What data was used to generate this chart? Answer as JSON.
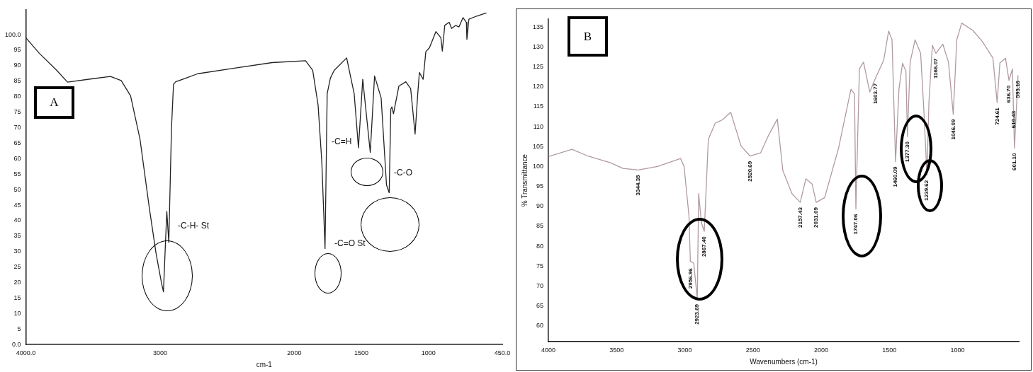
{
  "chart_data": [
    {
      "type": "line",
      "xlabel": "cm-1",
      "xlim": [
        4000,
        450
      ],
      "ylim": [
        0,
        108
      ],
      "color": "#222222",
      "xticks": [
        {
          "value": 4000,
          "label": "4000.0"
        },
        3000,
        2000,
        1500,
        1000,
        {
          "value": 450,
          "label": "450.0"
        }
      ],
      "yticks": [
        {
          "value": 0,
          "label": "0.0"
        },
        5,
        10,
        15,
        20,
        25,
        30,
        35,
        40,
        45,
        50,
        55,
        60,
        65,
        70,
        75,
        80,
        85,
        90,
        95,
        {
          "value": 100,
          "label": "100.0"
        }
      ],
      "x": [
        4000,
        3900,
        3770,
        3690,
        3500,
        3370,
        3290,
        3220,
        3150,
        3080,
        3030,
        2990,
        2975,
        2950,
        2935,
        2915,
        2900,
        2884,
        2719,
        2446,
        2165,
        1916,
        1863,
        1823,
        1795,
        1771,
        1755,
        1731,
        1703,
        1610,
        1554,
        1522,
        1490,
        1434,
        1402,
        1353,
        1313,
        1293,
        1281,
        1273,
        1261,
        1221,
        1169,
        1133,
        1100,
        1080,
        1068,
        1040,
        1020,
        993,
        945,
        908,
        897,
        879,
        846,
        828,
        798,
        773,
        743,
        718,
        714,
        699,
        641,
        571
      ],
      "values": [
        99,
        94,
        88.5,
        84.7,
        85.8,
        86.5,
        85.2,
        80.3,
        66.4,
        44,
        29.4,
        20,
        17,
        43,
        33,
        70,
        84,
        84.8,
        87.4,
        89.2,
        91,
        91.6,
        88.5,
        77.4,
        59,
        31,
        81,
        86,
        88.5,
        92.5,
        81,
        63.5,
        85.6,
        62,
        86.7,
        79.6,
        51.5,
        49,
        76,
        76.7,
        74.5,
        83.4,
        84.8,
        82.6,
        67.9,
        81,
        87.8,
        85.6,
        94.5,
        95.8,
        101,
        99,
        94.7,
        103,
        104,
        102,
        103,
        102.5,
        105.5,
        104,
        98.5,
        105,
        106,
        107
      ],
      "annotations": [
        "A",
        "-C-H- St",
        "-C=O St",
        "-C=H",
        "-C-O"
      ]
    },
    {
      "type": "line",
      "xlabel": "Wavenumbers (cm-1)",
      "ylabel": "% Transmittance",
      "xlim": [
        4000,
        550
      ],
      "ylim": [
        56,
        137
      ],
      "color": "#b09aa0",
      "xticks": [
        4000,
        3500,
        3000,
        2500,
        2000,
        1500,
        1000
      ],
      "yticks": [
        60,
        65,
        70,
        75,
        80,
        85,
        90,
        95,
        100,
        105,
        110,
        115,
        120,
        125,
        130,
        135
      ],
      "x": [
        4000,
        3827,
        3709,
        3541,
        3454,
        3342,
        3199,
        3031,
        3005,
        2969,
        2959,
        2934,
        2908,
        2898,
        2878,
        2857,
        2827,
        2776,
        2724,
        2663,
        2587,
        2520,
        2444,
        2383,
        2321,
        2281,
        2214,
        2153,
        2112,
        2066,
        2036,
        1974,
        1872,
        1781,
        1755,
        1745,
        1719,
        1689,
        1643,
        1602,
        1541,
        1505,
        1480,
        1454,
        1429,
        1403,
        1378,
        1367,
        1347,
        1311,
        1270,
        1245,
        1224,
        1209,
        1184,
        1158,
        1107,
        1066,
        1031,
        1005,
        969,
        888,
        816,
        740,
        709,
        689,
        648,
        622,
        597,
        582,
        556
      ],
      "values": [
        102.5,
        104.3,
        102.6,
        100.9,
        99.5,
        99.1,
        100,
        102,
        100,
        87.6,
        76.2,
        75.7,
        66.7,
        93.2,
        85.9,
        83.7,
        106.8,
        110.9,
        111.7,
        113.6,
        105.1,
        102.6,
        103.4,
        108,
        111.9,
        99,
        93.2,
        91,
        96.9,
        95.6,
        91,
        92.2,
        104.6,
        119.4,
        118.2,
        89.3,
        124.5,
        126.2,
        118.7,
        122.1,
        126.7,
        134,
        131.8,
        101.2,
        119.4,
        125.9,
        123.9,
        107.5,
        126.2,
        131.8,
        128.4,
        113.1,
        97.8,
        116.3,
        130.4,
        128.4,
        130.7,
        126.2,
        113.1,
        131.8,
        136,
        134.2,
        131.3,
        127.2,
        116,
        126,
        127.2,
        121.6,
        124.5,
        104.6,
        122.8
      ],
      "annotations": [
        "B",
        {
          "text": "3344.35",
          "x": 3342,
          "y": 99.1
        },
        {
          "text": "2956.96",
          "x": 2957,
          "y": 75.7
        },
        {
          "text": "2923.69",
          "x": 2908,
          "y": 66.7
        },
        {
          "text": "2867.40",
          "x": 2857,
          "y": 83.7
        },
        {
          "text": "2520.69",
          "x": 2520,
          "y": 102.6
        },
        {
          "text": "2157.43",
          "x": 2153,
          "y": 91
        },
        {
          "text": "2031.09",
          "x": 2036,
          "y": 91
        },
        {
          "text": "1747.06",
          "x": 1745,
          "y": 89.3
        },
        {
          "text": "1603.77",
          "x": 1602,
          "y": 122.1
        },
        {
          "text": "1460.09",
          "x": 1454,
          "y": 101.2
        },
        {
          "text": "1377.30",
          "x": 1367,
          "y": 107.5
        },
        {
          "text": "1239.62",
          "x": 1224,
          "y": 97.8
        },
        {
          "text": "1166.07",
          "x": 1158,
          "y": 128.4
        },
        {
          "text": "1046.09",
          "x": 1031,
          "y": 113.1
        },
        {
          "text": "724.61",
          "x": 709,
          "y": 116
        },
        {
          "text": "636.70",
          "x": 622,
          "y": 121.6
        },
        {
          "text": "610.43",
          "x": 590,
          "y": 115.2
        },
        {
          "text": "601.10",
          "x": 582,
          "y": 104.6
        },
        {
          "text": "593.16",
          "x": 556,
          "y": 122.8
        }
      ]
    }
  ]
}
